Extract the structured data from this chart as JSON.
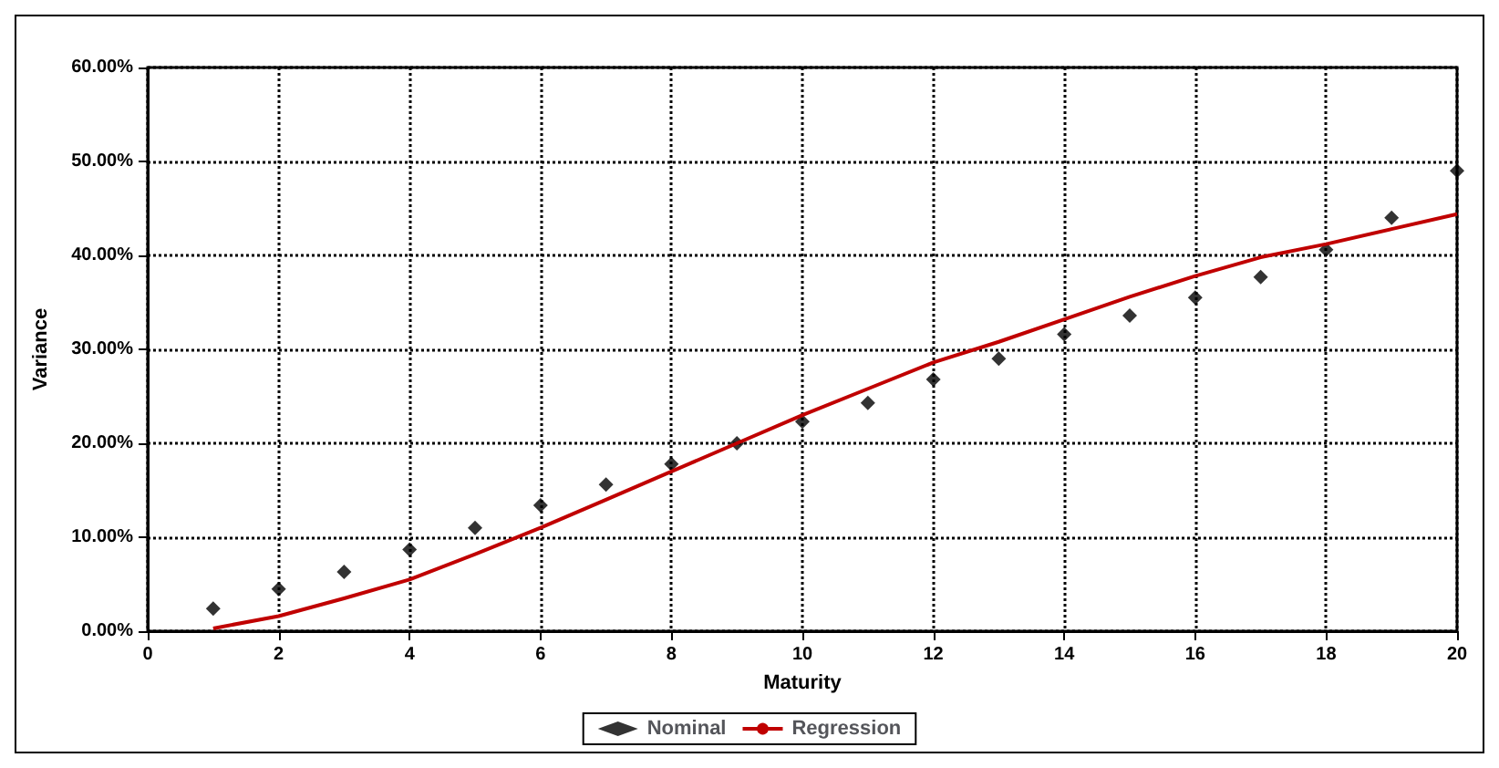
{
  "chart_data": {
    "type": "scatter",
    "xlabel": "Maturity",
    "ylabel": "Variance",
    "x": [
      1,
      2,
      3,
      4,
      5,
      6,
      7,
      8,
      9,
      10,
      11,
      12,
      13,
      14,
      15,
      16,
      17,
      18,
      19,
      20
    ],
    "series": [
      {
        "name": "Nominal",
        "color": "#000000",
        "marker": "diamond",
        "values": [
          2.4,
          4.5,
          6.3,
          8.7,
          11,
          13.4,
          15.6,
          17.8,
          20,
          22.3,
          24.3,
          26.8,
          29,
          31.6,
          33.6,
          35.5,
          37.7,
          40.6,
          44,
          49
        ]
      },
      {
        "name": "Regression",
        "type": "line",
        "color": "#c00000",
        "marker": "none",
        "line_style": "solid",
        "values": [
          0.3,
          1.6,
          3.5,
          5.5,
          8.2,
          11,
          14,
          17,
          20,
          23,
          25.8,
          28.6,
          30.8,
          33.2,
          35.6,
          37.8,
          39.8,
          41.2,
          42.8,
          44.4
        ]
      }
    ],
    "xlim": [
      0,
      20
    ],
    "xticks": [
      0,
      2,
      4,
      6,
      8,
      10,
      12,
      14,
      16,
      18,
      20
    ],
    "ylim": [
      0,
      60
    ],
    "yticks": [
      {
        "value": 0,
        "label": "0.00%"
      },
      {
        "value": 10,
        "label": "10.00%"
      },
      {
        "value": 20,
        "label": "20.00%"
      },
      {
        "value": 30,
        "label": "30.00%"
      },
      {
        "value": 40,
        "label": "40.00%"
      },
      {
        "value": 50,
        "label": "50.00%"
      },
      {
        "value": 60,
        "label": "60.00%"
      }
    ],
    "grid": true,
    "legend": "bottom"
  }
}
